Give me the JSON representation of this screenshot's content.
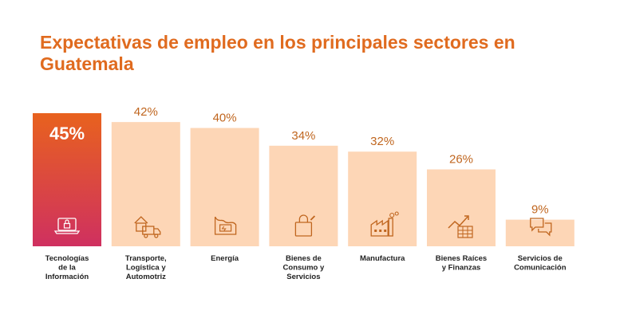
{
  "chart_data": {
    "type": "bar",
    "title": "Expectativas de empleo en los principales sectores en Guatemala",
    "categories": [
      [
        "Tecnologías",
        "de la",
        "Información"
      ],
      [
        "Transporte,",
        "Logística y",
        "Automotriz"
      ],
      [
        "Energía"
      ],
      [
        "Bienes de",
        "Consumo y",
        "Servicios"
      ],
      [
        "Manufactura"
      ],
      [
        "Bienes Raíces",
        "y Finanzas"
      ],
      [
        "Servicios de",
        "Comunicación"
      ]
    ],
    "values": [
      45,
      42,
      40,
      34,
      32,
      26,
      9
    ],
    "value_labels": [
      "45%",
      "42%",
      "40%",
      "34%",
      "32%",
      "26%",
      "9%"
    ],
    "icons": [
      "laptop-lock-icon",
      "truck-warehouse-icon",
      "energy-battery-icon",
      "shopping-bag-icon",
      "factory-icon",
      "chart-growth-icon",
      "chat-bubbles-icon"
    ],
    "ylim": [
      0,
      45
    ],
    "xlabel": "",
    "ylabel": "",
    "grid": false,
    "colors": {
      "title": "#E06B1F",
      "bar": "#FDD6B6",
      "highlight_top": "#E8621E",
      "highlight_bottom": "#CF3060",
      "value_text": "#C0661F",
      "icon": "#C0661F"
    }
  }
}
